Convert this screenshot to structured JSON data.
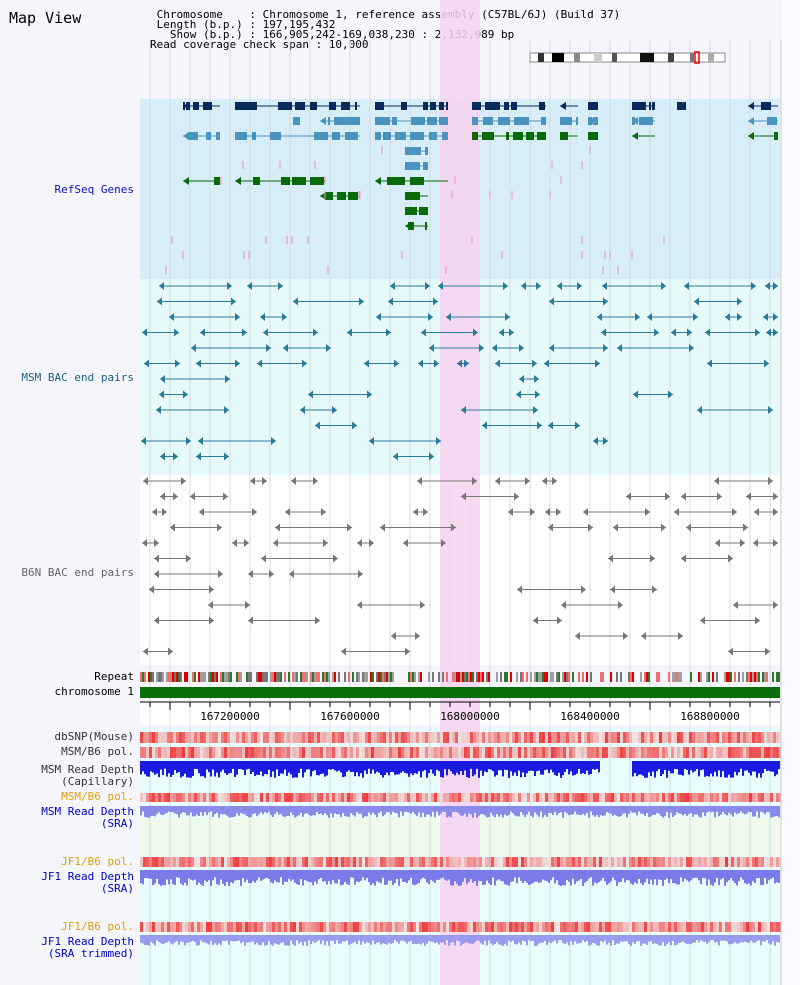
{
  "header": {
    "title": "Map View",
    "chromosome_line": " Chromosome    : Chromosome 1, reference assembly (C57BL/6J) (Build 37)",
    "length_line": " Length (b.p.) : 197,195,432",
    "show_line": "   Show (b.p.) : 166,905,242-169,038,230 : 2,132,989 bp",
    "span_line": "Read coverage check span : 10,000"
  },
  "tracks": {
    "refseq": "RefSeq Genes",
    "msm_bac": "MSM BAC end pairs",
    "b6n_bac": "B6N BAC end pairs",
    "repeat": "Repeat",
    "chromosome": "chromosome 1",
    "dbsnp": "dbSNP(Mouse)",
    "msm_pol": "MSM/B6 pol.",
    "msm_depth_cap": "MSM Read Depth\n(Capillary)",
    "msm_pol_sra": "MSM/B6 pol.",
    "msm_depth_sra": "MSM Read Depth\n(SRA)",
    "jf1_pol": "JF1/B6 pol.",
    "jf1_depth": "JF1 Read Depth\n(SRA)",
    "jf1_pol_trim": "JF1/B6 pol.",
    "jf1_depth_trim": "JF1 Read Depth\n(SRA trimmed)"
  },
  "position_ticks": [
    "167200000",
    "167600000",
    "168000000",
    "168400000",
    "168800000"
  ],
  "colors": {
    "refseq_bg": "#d7eef9",
    "msm_bg": "#e6fafc",
    "highlight": "#f7d2f0",
    "gene_dark": "#0a2a5c",
    "gene_mid": "#4a93bf",
    "gene_green": "#0a6a0a",
    "msm_pair": "#2a7a9a",
    "b6n_pair": "#777777",
    "depth_blue": "#1a1ae0",
    "depth_lav": "#8a8ae8",
    "label_blue": "#0000c8",
    "label_teal": "#206080",
    "label_orange": "#e0a000"
  }
}
